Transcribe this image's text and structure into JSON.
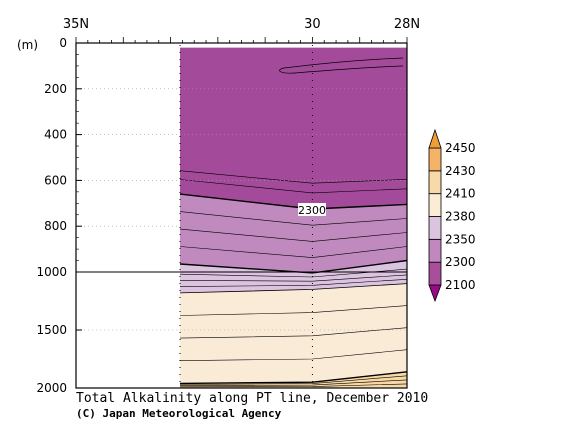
{
  "chart_data": {
    "type": "contour",
    "title": "Total Alkalinity along PT line, December 2010",
    "credit": "(C) Japan Meteorological Agency",
    "x_unit_tick_labels": [
      "35N",
      "30",
      "28N"
    ],
    "x_ticks": [
      35,
      30,
      28
    ],
    "xlim": [
      35,
      28
    ],
    "y_unit_label": "(m)",
    "y_tick_labels": [
      "0",
      "200",
      "400",
      "600",
      "800",
      "1000",
      "1500",
      "2000"
    ],
    "y_ticks": [
      0,
      200,
      400,
      600,
      800,
      1000,
      1500,
      2000
    ],
    "ylim": [
      0,
      2000
    ],
    "y_axis_note": "linear 0-1000 m, compressed scale 1000-2000 m",
    "data_start_lat": 32.8,
    "contour_label": "2300",
    "colorbar": {
      "tick_labels": [
        "2450",
        "2430",
        "2410",
        "2380",
        "2350",
        "2300",
        "2100"
      ],
      "levels": [
        2100,
        2300,
        2350,
        2380,
        2410,
        2430,
        2450
      ],
      "colors": [
        "#980a86",
        "#a84e9a",
        "#c088be",
        "#dcc3e0",
        "#fbecd6",
        "#f8d9a8",
        "#f5b36a",
        "#ee9d37"
      ]
    },
    "bands": [
      {
        "range": "<2300",
        "color": "#a44a9b",
        "depth_top": [
          20,
          20,
          20
        ],
        "depth_bottom": [
          660,
          725,
          705
        ]
      },
      {
        "range": "2300-2350",
        "color": "#c08abf",
        "depth_top": [
          660,
          725,
          705
        ],
        "depth_bottom": [
          965,
          1008,
          950
        ]
      },
      {
        "range": "2350-2380",
        "color": "#dcc3e0",
        "depth_top": [
          965,
          1008,
          950
        ],
        "depth_bottom": [
          1180,
          1150,
          1100
        ]
      },
      {
        "range": "2380-2410",
        "color": "#faebd7",
        "depth_top": [
          1180,
          1150,
          1100
        ],
        "depth_bottom": [
          1960,
          1950,
          1860
        ]
      },
      {
        "range": "2410-2430",
        "color": "#f8d9a6",
        "depth_top": [
          1960,
          1950,
          1860
        ],
        "depth_bottom": [
          2000,
          2000,
          2000
        ]
      }
    ],
    "section_lats": [
      32.8,
      30,
      28
    ]
  }
}
